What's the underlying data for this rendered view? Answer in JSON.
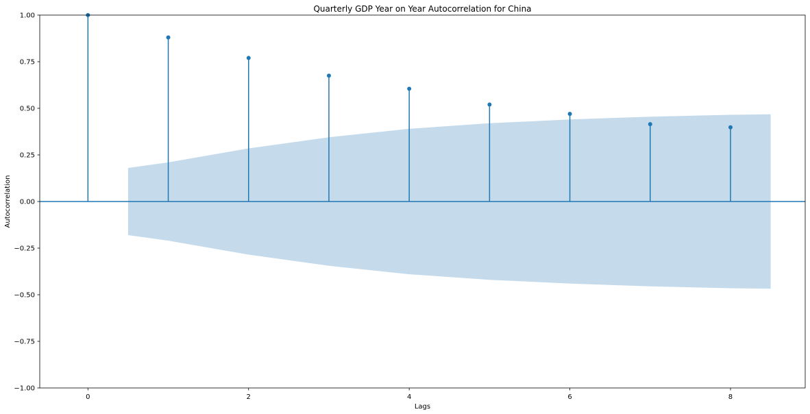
{
  "chart_data": {
    "type": "scatter",
    "subtype": "stem-autocorrelation",
    "title": "Quarterly GDP Year on Year Autocorrelation for China",
    "xlabel": "Lags",
    "ylabel": "Autocorrelation",
    "xlim": [
      -0.6,
      8.93
    ],
    "ylim": [
      -1.0,
      1.0
    ],
    "x_ticks": [
      0,
      2,
      4,
      6,
      8
    ],
    "y_ticks": [
      -1.0,
      -0.75,
      -0.5,
      -0.25,
      0.0,
      0.25,
      0.5,
      0.75,
      1.0
    ],
    "x_tick_labels": [
      "0",
      "2",
      "4",
      "6",
      "8"
    ],
    "y_tick_labels": [
      "−1.00",
      "−0.75",
      "−0.50",
      "−0.25",
      "0.00",
      "0.25",
      "0.50",
      "0.75",
      "1.00"
    ],
    "grid": false,
    "legend": "none",
    "series": [
      {
        "x": [
          0,
          1,
          2,
          3,
          4,
          5,
          6,
          7,
          8
        ],
        "values": [
          1.0,
          0.88,
          0.77,
          0.675,
          0.605,
          0.52,
          0.47,
          0.415,
          0.398
        ]
      }
    ],
    "confidence_band": {
      "x": [
        0.5,
        1,
        2,
        3,
        4,
        5,
        6,
        7,
        8,
        8.5
      ],
      "upper": [
        0.18,
        0.21,
        0.285,
        0.345,
        0.39,
        0.42,
        0.44,
        0.455,
        0.465,
        0.468
      ]
    },
    "colors": {
      "series": "#1f77b4",
      "band": "#c5dbec",
      "zero_line": "#1f77b4"
    }
  }
}
